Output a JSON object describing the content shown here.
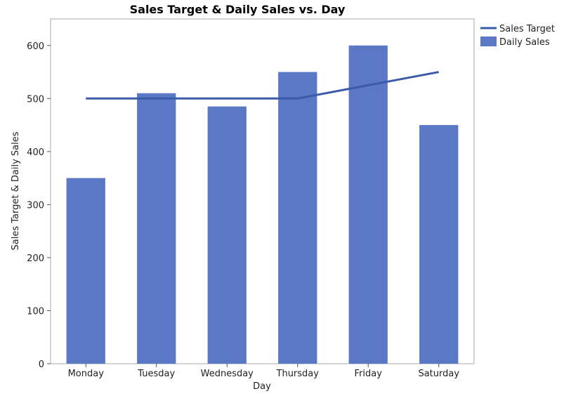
{
  "chart_data": {
    "type": "bar",
    "title": "Sales Target & Daily Sales vs. Day",
    "xlabel": "Day",
    "ylabel": "Sales Target & Daily Sales",
    "categories": [
      "Monday",
      "Tuesday",
      "Wednesday",
      "Thursday",
      "Friday",
      "Saturday"
    ],
    "ylim": [
      0,
      650
    ],
    "yticks": [
      0,
      100,
      200,
      300,
      400,
      500,
      600
    ],
    "series": [
      {
        "name": "Sales Target",
        "type": "line",
        "color": "#3a5ba8",
        "values": [
          500,
          500,
          500,
          500,
          525,
          550
        ]
      },
      {
        "name": "Daily Sales",
        "type": "bar",
        "color": "#5a78c6",
        "values": [
          350,
          510,
          485,
          550,
          600,
          450
        ]
      }
    ],
    "legend": "top-right, outside plot",
    "grid": false
  }
}
